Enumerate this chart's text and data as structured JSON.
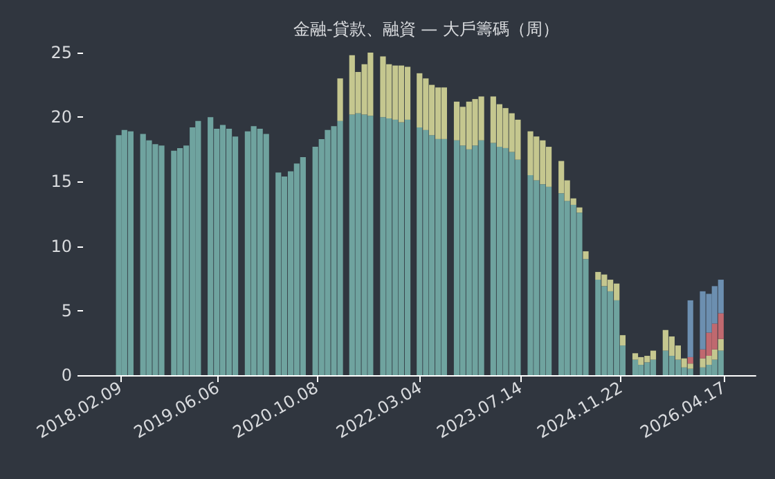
{
  "chart_data": {
    "type": "bar",
    "title": "金融-貸款、融資 — 大戶籌碼（周）",
    "stacked": true,
    "x": [
      "2018-02",
      "2018-03",
      "2018-04",
      "2018-05",
      "2018-06",
      "2018-07",
      "2018-08",
      "2018-09",
      "2018-10",
      "2018-11",
      "2018-12",
      "2019-01",
      "2019-02",
      "2019-03",
      "2019-04",
      "2019-05",
      "2019-06",
      "2019-07",
      "2019-08",
      "2019-09",
      "2019-10",
      "2019-11",
      "2019-12",
      "2020-01",
      "2020-02",
      "2020-03",
      "2020-04",
      "2020-05",
      "2020-06",
      "2020-07",
      "2020-08",
      "2020-09",
      "2020-10",
      "2020-11",
      "2020-12",
      "2021-01",
      "2021-02",
      "2021-03",
      "2021-04",
      "2021-05",
      "2021-06",
      "2021-07",
      "2021-08",
      "2021-09",
      "2021-10",
      "2021-11",
      "2021-12",
      "2022-01",
      "2022-02",
      "2022-03",
      "2022-04",
      "2022-05",
      "2022-06",
      "2022-07",
      "2022-08",
      "2022-09",
      "2022-10",
      "2022-11",
      "2022-12",
      "2023-01",
      "2023-02",
      "2023-03",
      "2023-04",
      "2023-05",
      "2023-06",
      "2023-07",
      "2023-08",
      "2023-09",
      "2023-10",
      "2023-11",
      "2023-12",
      "2024-01",
      "2024-02",
      "2024-03",
      "2024-04",
      "2024-05",
      "2024-06",
      "2024-07",
      "2024-08",
      "2024-09",
      "2024-10",
      "2024-11",
      "2024-12",
      "2025-01",
      "2025-02",
      "2025-03",
      "2025-04",
      "2025-05",
      "2025-06",
      "2025-07",
      "2025-08",
      "2025-09",
      "2025-10",
      "2025-11",
      "2025-12",
      "2026-01",
      "2026-02",
      "2026-03",
      "2026-04"
    ],
    "series": [
      {
        "color": "#6fa39f",
        "values": [
          18.6,
          19.0,
          18.9,
          null,
          18.7,
          18.2,
          17.9,
          17.8,
          null,
          17.4,
          17.6,
          17.8,
          19.2,
          19.7,
          null,
          20.0,
          19.1,
          19.4,
          19.1,
          18.5,
          null,
          18.9,
          19.3,
          19.1,
          18.7,
          null,
          15.7,
          15.4,
          15.8,
          16.4,
          16.9,
          null,
          17.7,
          18.3,
          19.0,
          19.3,
          19.7,
          null,
          20.2,
          20.3,
          20.2,
          20.1,
          null,
          20.0,
          19.9,
          19.8,
          19.6,
          19.8,
          null,
          19.2,
          19.0,
          18.6,
          18.3,
          18.3,
          null,
          18.2,
          17.8,
          17.5,
          17.8,
          18.2,
          null,
          18.0,
          17.7,
          17.6,
          17.3,
          16.7,
          null,
          15.5,
          15.1,
          14.8,
          14.6,
          null,
          14.1,
          13.5,
          13.2,
          12.6,
          9.0,
          null,
          7.4,
          6.9,
          6.5,
          5.8,
          2.3,
          null,
          1.2,
          0.8,
          1.0,
          1.2,
          null,
          1.9,
          1.5,
          1.2,
          0.6,
          0.5,
          null,
          0.6,
          0.8,
          1.2,
          1.9
        ]
      },
      {
        "color": "#c5c78f",
        "values": [
          null,
          null,
          null,
          null,
          null,
          null,
          null,
          null,
          null,
          null,
          null,
          null,
          null,
          null,
          null,
          null,
          null,
          null,
          null,
          null,
          null,
          null,
          null,
          null,
          null,
          null,
          null,
          null,
          null,
          null,
          null,
          null,
          null,
          null,
          null,
          null,
          3.3,
          null,
          4.6,
          3.2,
          3.9,
          4.9,
          null,
          4.7,
          4.2,
          4.2,
          4.4,
          4.1,
          null,
          4.2,
          4.0,
          3.9,
          4.0,
          4.0,
          null,
          3.0,
          3.0,
          3.7,
          3.6,
          3.4,
          null,
          3.6,
          3.3,
          3.1,
          3.0,
          3.1,
          null,
          3.4,
          3.4,
          3.4,
          3.1,
          null,
          2.5,
          1.6,
          0.5,
          0.4,
          0.6,
          null,
          0.6,
          0.9,
          0.9,
          1.3,
          0.8,
          null,
          0.5,
          0.6,
          0.5,
          0.7,
          null,
          1.6,
          1.5,
          1.1,
          0.7,
          0.4,
          null,
          0.7,
          0.7,
          0.8,
          0.9
        ]
      },
      {
        "color": "#c0696f",
        "values": [
          null,
          null,
          null,
          null,
          null,
          null,
          null,
          null,
          null,
          null,
          null,
          null,
          null,
          null,
          null,
          null,
          null,
          null,
          null,
          null,
          null,
          null,
          null,
          null,
          null,
          null,
          null,
          null,
          null,
          null,
          null,
          null,
          null,
          null,
          null,
          null,
          null,
          null,
          null,
          null,
          null,
          null,
          null,
          null,
          null,
          null,
          null,
          null,
          null,
          null,
          null,
          null,
          null,
          null,
          null,
          null,
          null,
          null,
          null,
          null,
          null,
          null,
          null,
          null,
          null,
          null,
          null,
          null,
          null,
          null,
          null,
          null,
          null,
          null,
          null,
          null,
          null,
          null,
          null,
          null,
          null,
          null,
          null,
          null,
          null,
          null,
          null,
          null,
          null,
          null,
          null,
          null,
          null,
          0.5,
          null,
          0.7,
          1.8,
          2.0,
          2.0
        ]
      },
      {
        "color": "#6c8fb0",
        "values": [
          null,
          null,
          null,
          null,
          null,
          null,
          null,
          null,
          null,
          null,
          null,
          null,
          null,
          null,
          null,
          null,
          null,
          null,
          null,
          null,
          null,
          null,
          null,
          null,
          null,
          null,
          null,
          null,
          null,
          null,
          null,
          null,
          null,
          null,
          null,
          null,
          null,
          null,
          null,
          null,
          null,
          null,
          null,
          null,
          null,
          null,
          null,
          null,
          null,
          null,
          null,
          null,
          null,
          null,
          null,
          null,
          null,
          null,
          null,
          null,
          null,
          null,
          null,
          null,
          null,
          null,
          null,
          null,
          null,
          null,
          null,
          null,
          null,
          null,
          null,
          null,
          null,
          null,
          null,
          null,
          null,
          null,
          null,
          null,
          null,
          null,
          null,
          null,
          null,
          null,
          null,
          null,
          null,
          4.4,
          null,
          4.5,
          3.0,
          2.9,
          2.6
        ]
      }
    ],
    "xlim": [
      "2017-08-08",
      "2026-09-20"
    ],
    "xticks": [
      {
        "value": "2018-02-09",
        "label": "2018.02.09"
      },
      {
        "value": "2019-06-06",
        "label": "2019.06.06"
      },
      {
        "value": "2020-10-08",
        "label": "2020.10.08"
      },
      {
        "value": "2022-03-04",
        "label": "2022.03.04"
      },
      {
        "value": "2023-07-14",
        "label": "2023.07.14"
      },
      {
        "value": "2024-11-22",
        "label": "2024.11.22"
      },
      {
        "value": "2026-04-17",
        "label": "2026.04.17"
      }
    ],
    "ylim": [
      0,
      25
    ],
    "yticks": [
      0,
      5,
      10,
      15,
      20,
      25
    ],
    "grid": false
  }
}
